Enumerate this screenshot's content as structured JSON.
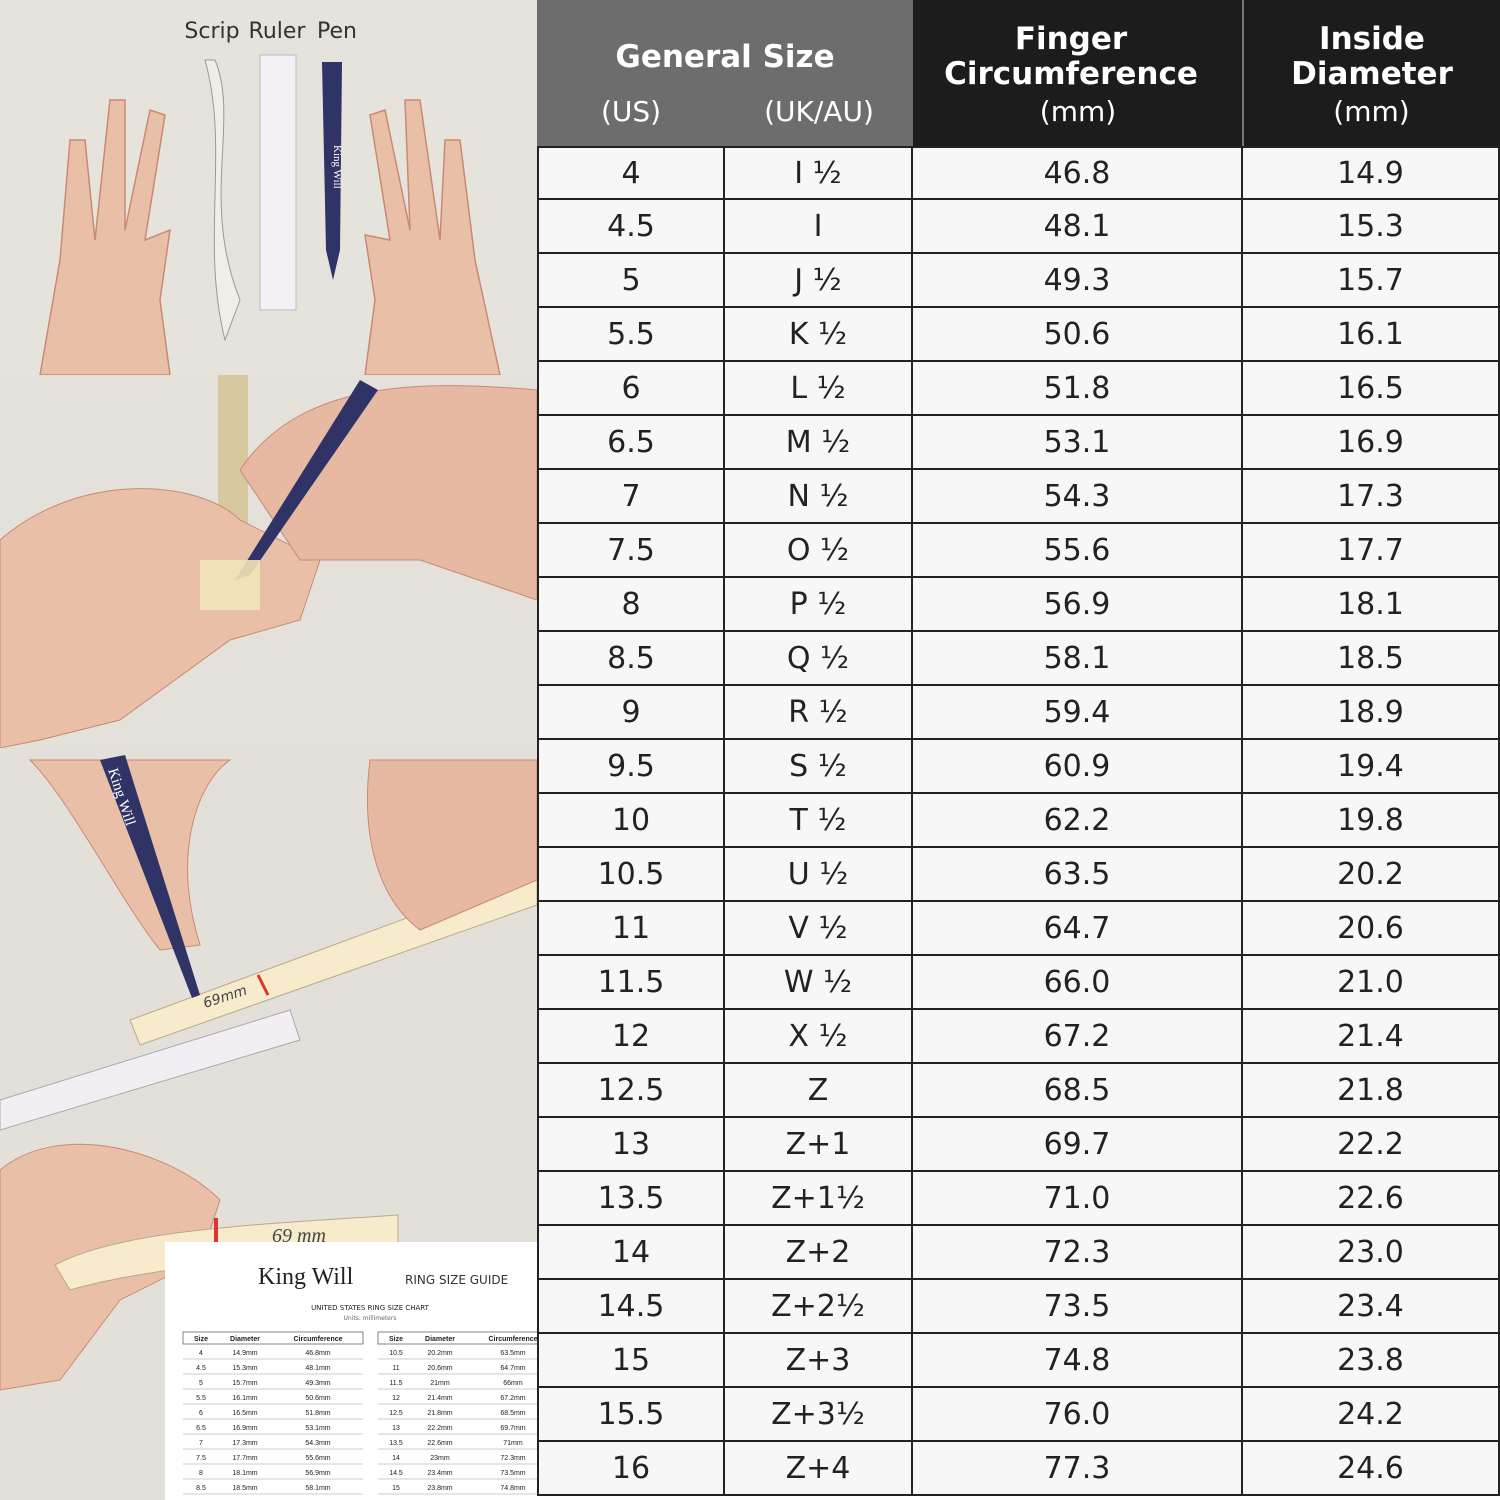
{
  "illustrations": {
    "tools": [
      "Scrip",
      "Ruler",
      "Pen"
    ],
    "brand": "King Will",
    "strip_mark": "69mm",
    "strip_mark_final": "69 mm"
  },
  "mini_guide": {
    "brand": "King Will",
    "subtitle": "RING SIZE GUIDE",
    "title": "UNITED STATES RING SIZE CHART",
    "units": "Units: millimeters",
    "headers": [
      "Size",
      "Diameter",
      "Circumference"
    ],
    "left_rows": [
      [
        "4",
        "14.9mm",
        "46.8mm"
      ],
      [
        "4.5",
        "15.3mm",
        "48.1mm"
      ],
      [
        "5",
        "15.7mm",
        "49.3mm"
      ],
      [
        "5.5",
        "16.1mm",
        "50.6mm"
      ],
      [
        "6",
        "16.5mm",
        "51.8mm"
      ],
      [
        "6.5",
        "16.9mm",
        "53.1mm"
      ],
      [
        "7",
        "17.3mm",
        "54.3mm"
      ],
      [
        "7.5",
        "17.7mm",
        "55.6mm"
      ],
      [
        "8",
        "18.1mm",
        "56.9mm"
      ],
      [
        "8.5",
        "18.5mm",
        "58.1mm"
      ]
    ],
    "right_rows": [
      [
        "10.5",
        "20.2mm",
        "63.5mm"
      ],
      [
        "11",
        "20.6mm",
        "64.7mm"
      ],
      [
        "11.5",
        "21mm",
        "66mm"
      ],
      [
        "12",
        "21.4mm",
        "67.2mm"
      ],
      [
        "12.5",
        "21.8mm",
        "68.5mm"
      ],
      [
        "13",
        "22.2mm",
        "69.7mm"
      ],
      [
        "13.5",
        "22.6mm",
        "71mm"
      ],
      [
        "14",
        "23mm",
        "72.3mm"
      ],
      [
        "14.5",
        "23.4mm",
        "73.5mm"
      ],
      [
        "15",
        "23.8mm",
        "74.8mm"
      ]
    ]
  },
  "table": {
    "headers": {
      "general_size": "General Size",
      "us": "(US)",
      "uk_au": "(UK/AU)",
      "circumference": "Finger Circumference",
      "circumference_unit": "(mm)",
      "diameter": "Inside Diameter",
      "diameter_unit": "(mm)"
    },
    "rows": [
      [
        "4",
        "I ½",
        "46.8",
        "14.9"
      ],
      [
        "4.5",
        "I",
        "48.1",
        "15.3"
      ],
      [
        "5",
        "J ½",
        "49.3",
        "15.7"
      ],
      [
        "5.5",
        "K ½",
        "50.6",
        "16.1"
      ],
      [
        "6",
        "L ½",
        "51.8",
        "16.5"
      ],
      [
        "6.5",
        "M ½",
        "53.1",
        "16.9"
      ],
      [
        "7",
        "N ½",
        "54.3",
        "17.3"
      ],
      [
        "7.5",
        "O ½",
        "55.6",
        "17.7"
      ],
      [
        "8",
        "P ½",
        "56.9",
        "18.1"
      ],
      [
        "8.5",
        "Q ½",
        "58.1",
        "18.5"
      ],
      [
        "9",
        "R ½",
        "59.4",
        "18.9"
      ],
      [
        "9.5",
        "S ½",
        "60.9",
        "19.4"
      ],
      [
        "10",
        "T ½",
        "62.2",
        "19.8"
      ],
      [
        "10.5",
        "U ½",
        "63.5",
        "20.2"
      ],
      [
        "11",
        "V ½",
        "64.7",
        "20.6"
      ],
      [
        "11.5",
        "W ½",
        "66.0",
        "21.0"
      ],
      [
        "12",
        "X ½",
        "67.2",
        "21.4"
      ],
      [
        "12.5",
        "Z",
        "68.5",
        "21.8"
      ],
      [
        "13",
        "Z+1",
        "69.7",
        "22.2"
      ],
      [
        "13.5",
        "Z+1½",
        "71.0",
        "22.6"
      ],
      [
        "14",
        "Z+2",
        "72.3",
        "23.0"
      ],
      [
        "14.5",
        "Z+2½",
        "73.5",
        "23.4"
      ],
      [
        "15",
        "Z+3",
        "74.8",
        "23.8"
      ],
      [
        "15.5",
        "Z+3½",
        "76.0",
        "24.2"
      ],
      [
        "16",
        "Z+4",
        "77.3",
        "24.6"
      ]
    ]
  }
}
